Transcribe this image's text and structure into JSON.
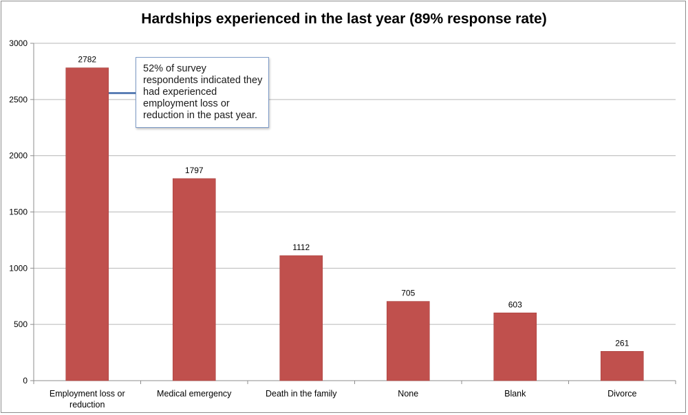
{
  "chart_data": {
    "type": "bar",
    "title": "Hardships experienced in the last year (89% response rate)",
    "categories": [
      [
        "Employment loss or",
        "reduction"
      ],
      [
        "Medical emergency"
      ],
      [
        "Death in the family"
      ],
      [
        "None"
      ],
      [
        "Blank"
      ],
      [
        "Divorce"
      ]
    ],
    "values": [
      2782,
      1797,
      1112,
      705,
      603,
      261
    ],
    "data_labels": [
      "2782",
      "1797",
      "1112",
      "705",
      "603",
      "261"
    ],
    "ylim": [
      0,
      3000
    ],
    "yticks": [
      0,
      500,
      1000,
      1500,
      2000,
      2500,
      3000
    ],
    "grid": "horizontal",
    "bar_color": "#c0504d",
    "annotation": "52% of survey respondents indicated they had experienced employment loss or reduction in the past year."
  }
}
